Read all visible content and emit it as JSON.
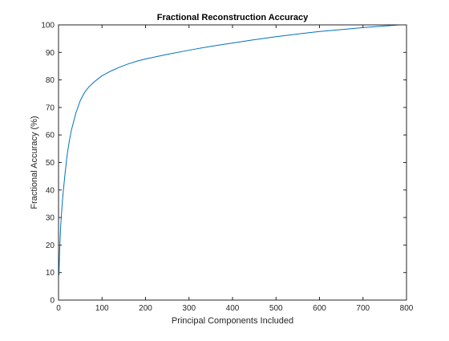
{
  "chart_data": {
    "type": "line",
    "title": "Fractional Reconstruction Accuracy",
    "xlabel": "Principal Components Included",
    "ylabel": "Fractional Accuracy (%)",
    "xlim": [
      0,
      800
    ],
    "ylim": [
      0,
      100
    ],
    "xticks": [
      0,
      100,
      200,
      300,
      400,
      500,
      600,
      700,
      800
    ],
    "yticks": [
      0,
      10,
      20,
      30,
      40,
      50,
      60,
      70,
      80,
      90,
      100
    ],
    "grid": false,
    "legend": "none",
    "series": [
      {
        "color": "#0072BD",
        "x": [
          1,
          2,
          3,
          5,
          8,
          10,
          15,
          20,
          25,
          30,
          40,
          50,
          60,
          70,
          80,
          90,
          100,
          120,
          140,
          160,
          180,
          200,
          250,
          300,
          350,
          400,
          450,
          500,
          550,
          600,
          650,
          700,
          750,
          784
        ],
        "y": [
          9,
          15,
          20,
          27,
          34,
          38,
          46,
          53,
          58,
          62,
          68,
          72.5,
          75.5,
          77.5,
          79,
          80.3,
          81.5,
          83.2,
          84.6,
          85.8,
          86.8,
          87.6,
          89.3,
          90.8,
          92.2,
          93.4,
          94.6,
          95.7,
          96.7,
          97.6,
          98.3,
          99,
          99.6,
          100
        ]
      }
    ]
  }
}
